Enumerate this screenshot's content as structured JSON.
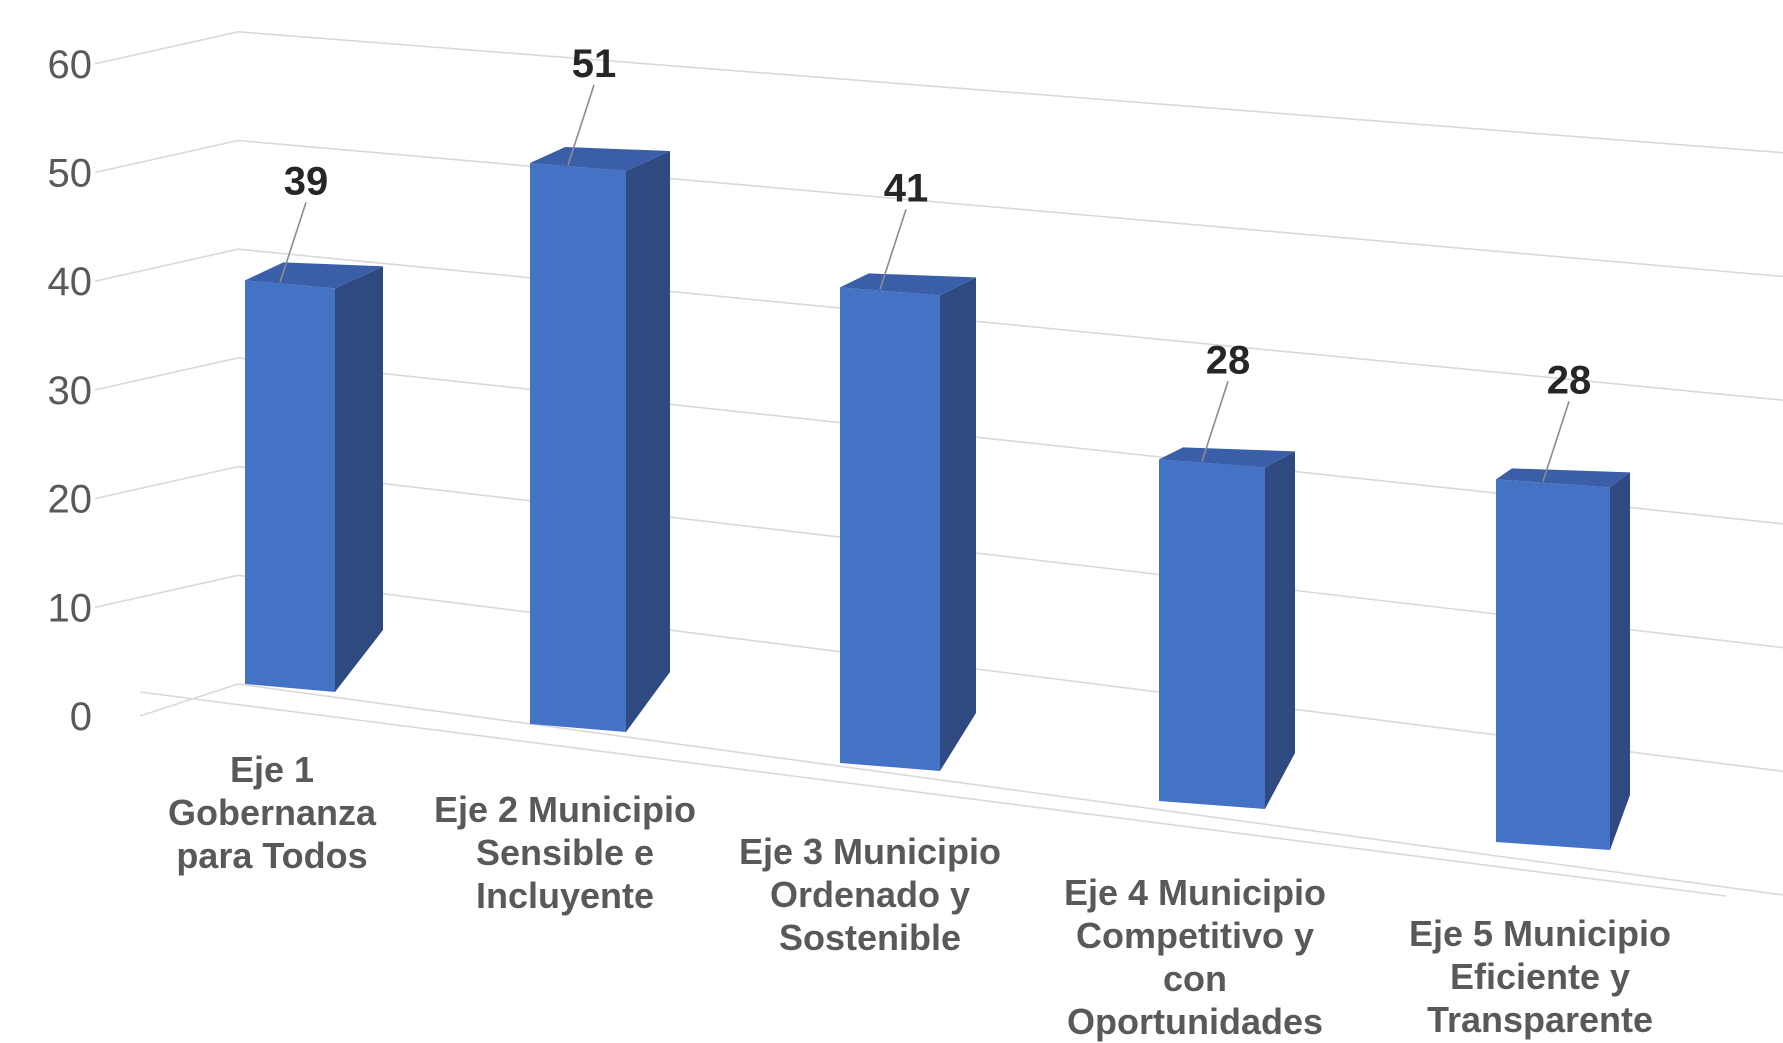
{
  "chart_data": {
    "type": "bar",
    "style": "3d-column",
    "categories": [
      "Eje 1 Gobernanza para Todos",
      "Eje 2 Municipio Sensible e Incluyente",
      "Eje 3 Municipio Ordenado y Sostenible",
      "Eje 4 Municipio Competitivo y con Oportunidades",
      "Eje 5 Municipio Eficiente y Transparente"
    ],
    "values": [
      39,
      51,
      41,
      28,
      28
    ],
    "value_labels": [
      "39",
      "51",
      "41",
      "28",
      "28"
    ],
    "ylim": [
      0,
      60
    ],
    "yticks": [
      "0",
      "10",
      "20",
      "30",
      "40",
      "50",
      "60"
    ],
    "grid": true,
    "legend": "none",
    "title": "",
    "xlabel": "",
    "ylabel": "",
    "colors": {
      "bar_front": "#4472C4",
      "bar_side": "#2F4A80",
      "bar_top": "#3A5FA8",
      "grid": "#D9D9D9",
      "tick_text": "#595959",
      "data_label_text": "#262626",
      "category_text": "#595959"
    }
  }
}
